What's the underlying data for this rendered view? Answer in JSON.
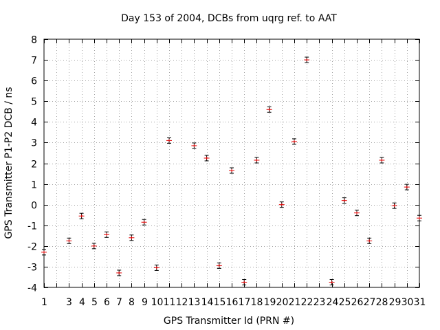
{
  "chart_data": {
    "type": "scatter",
    "title": "Day 153 of 2004, DCBs from uqrg ref. to AAT",
    "xlabel": "GPS Transmitter Id (PRN #)",
    "ylabel": "GPS Transmitter P1-P2 DCB / ns",
    "xlim": [
      1,
      31
    ],
    "ylim": [
      -4,
      8
    ],
    "x_ticks": [
      1,
      2,
      3,
      4,
      5,
      6,
      7,
      8,
      9,
      10,
      11,
      12,
      13,
      14,
      15,
      16,
      17,
      18,
      19,
      20,
      21,
      22,
      23,
      24,
      25,
      26,
      27,
      28,
      29,
      30,
      31
    ],
    "x_tick_labels": [
      "1",
      "",
      "3",
      "4",
      "5",
      "6",
      "7",
      "8",
      "9",
      "10",
      "11",
      "12",
      "13",
      "14",
      "15",
      "16",
      "17",
      "18",
      "19",
      "20",
      "21",
      "22",
      "23",
      "24",
      "25",
      "26",
      "27",
      "28",
      "29",
      "30",
      "31"
    ],
    "y_ticks": [
      -4,
      -3,
      -2,
      -1,
      0,
      1,
      2,
      3,
      4,
      5,
      6,
      7,
      8
    ],
    "y_tick_labels": [
      "-4",
      "-3",
      "-2",
      "-1",
      "0",
      "1",
      "2",
      "3",
      "4",
      "5",
      "6",
      "7",
      "8"
    ],
    "grid": true,
    "series": [
      {
        "name": "DCB",
        "color": "#e00000",
        "points": [
          {
            "x": 1,
            "y": -2.3
          },
          {
            "x": 3,
            "y": -1.75
          },
          {
            "x": 4,
            "y": -0.55
          },
          {
            "x": 5,
            "y": -2.0
          },
          {
            "x": 6,
            "y": -1.45
          },
          {
            "x": 7,
            "y": -3.3
          },
          {
            "x": 8,
            "y": -1.6
          },
          {
            "x": 9,
            "y": -0.85
          },
          {
            "x": 10,
            "y": -3.05
          },
          {
            "x": 11,
            "y": 3.1
          },
          {
            "x": 13,
            "y": 2.85
          },
          {
            "x": 14,
            "y": 2.25
          },
          {
            "x": 15,
            "y": -2.95
          },
          {
            "x": 16,
            "y": 1.65
          },
          {
            "x": 17,
            "y": -3.75
          },
          {
            "x": 18,
            "y": 2.15
          },
          {
            "x": 19,
            "y": 4.6
          },
          {
            "x": 20,
            "y": 0.0
          },
          {
            "x": 21,
            "y": 3.05
          },
          {
            "x": 22,
            "y": 7.0
          },
          {
            "x": 24,
            "y": -3.75
          },
          {
            "x": 25,
            "y": 0.2
          },
          {
            "x": 26,
            "y": -0.4
          },
          {
            "x": 27,
            "y": -1.75
          },
          {
            "x": 28,
            "y": 2.15
          },
          {
            "x": 29,
            "y": -0.05
          },
          {
            "x": 30,
            "y": 0.85
          },
          {
            "x": 31,
            "y": -0.65
          }
        ]
      }
    ]
  }
}
